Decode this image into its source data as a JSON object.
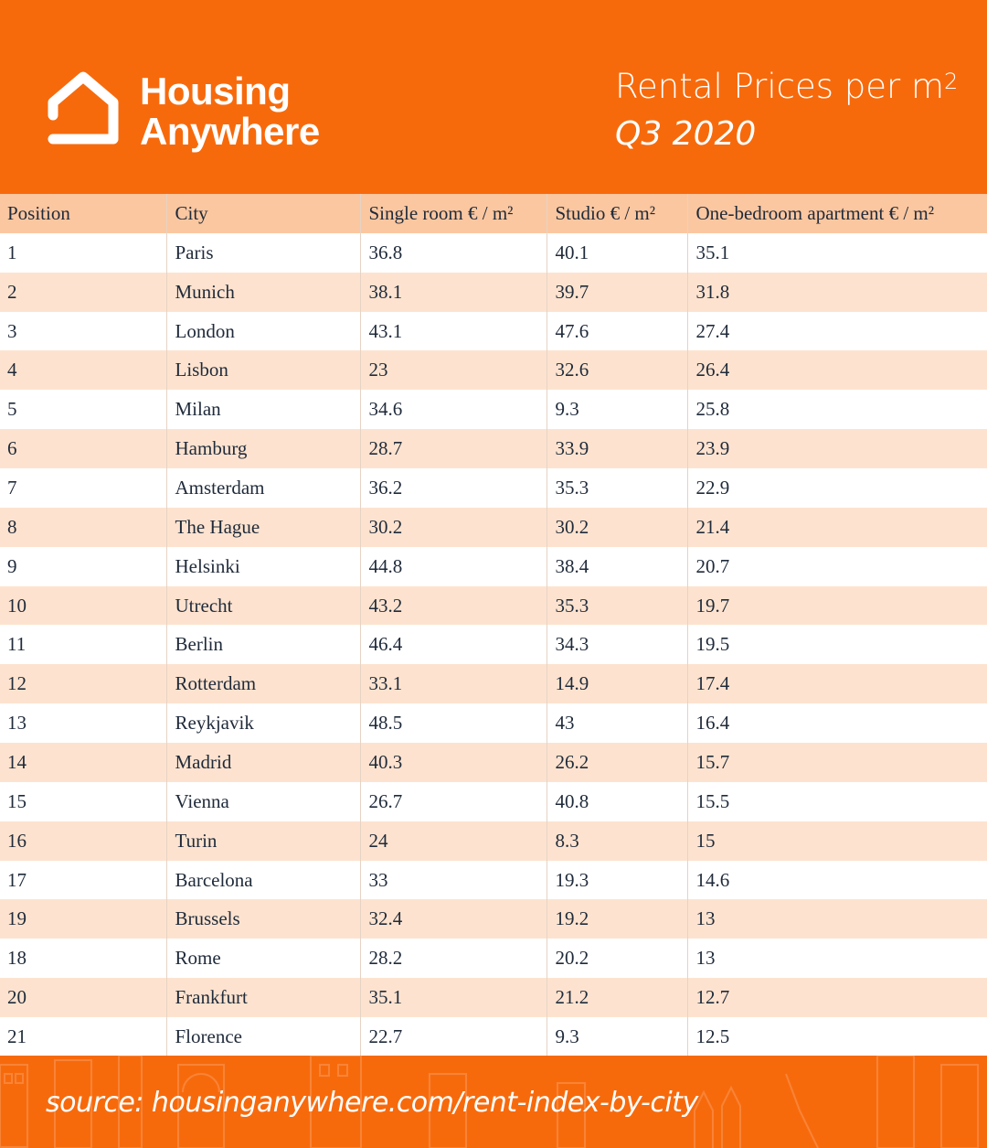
{
  "header": {
    "brand_line1": "Housing",
    "brand_line2": "Anywhere",
    "title": "Rental Prices per m",
    "title_sup": "2",
    "subtitle": "Q3 2020",
    "logo_icon": "house-icon"
  },
  "colors": {
    "brand": "#F76A0C",
    "header_row": "#FBC7A0",
    "alt_row": "#FDE3CF"
  },
  "table": {
    "columns": [
      "Position",
      "City",
      "Single room € / m²",
      "Studio € / m²",
      "One-bedroom apartment € / m²"
    ],
    "rows": [
      [
        "1",
        "Paris",
        "36.8",
        "40.1",
        "35.1"
      ],
      [
        "2",
        "Munich",
        "38.1",
        "39.7",
        "31.8"
      ],
      [
        "3",
        "London",
        "43.1",
        "47.6",
        "27.4"
      ],
      [
        "4",
        "Lisbon",
        "23",
        "32.6",
        "26.4"
      ],
      [
        "5",
        "Milan",
        "34.6",
        "9.3",
        "25.8"
      ],
      [
        "6",
        "Hamburg",
        "28.7",
        "33.9",
        "23.9"
      ],
      [
        "7",
        "Amsterdam",
        "36.2",
        "35.3",
        "22.9"
      ],
      [
        "8",
        "The Hague",
        "30.2",
        "30.2",
        "21.4"
      ],
      [
        "9",
        "Helsinki",
        "44.8",
        "38.4",
        "20.7"
      ],
      [
        "10",
        "Utrecht",
        "43.2",
        "35.3",
        "19.7"
      ],
      [
        "11",
        "Berlin",
        "46.4",
        "34.3",
        "19.5"
      ],
      [
        "12",
        "Rotterdam",
        "33.1",
        "14.9",
        "17.4"
      ],
      [
        "13",
        "Reykjavik",
        "48.5",
        "43",
        "16.4"
      ],
      [
        "14",
        "Madrid",
        "40.3",
        "26.2",
        "15.7"
      ],
      [
        "15",
        "Vienna",
        "26.7",
        "40.8",
        "15.5"
      ],
      [
        "16",
        "Turin",
        "24",
        "8.3",
        "15"
      ],
      [
        "17",
        "Barcelona",
        "33",
        "19.3",
        "14.6"
      ],
      [
        "19",
        "Brussels",
        "32.4",
        "19.2",
        "13"
      ],
      [
        "18",
        "Rome",
        "28.2",
        "20.2",
        "13"
      ],
      [
        "20",
        "Frankfurt",
        "35.1",
        "21.2",
        "12.7"
      ],
      [
        "21",
        "Florence",
        "22.7",
        "9.3",
        "12.5"
      ]
    ]
  },
  "footer": {
    "source": "source: housinganywhere.com/rent-index-by-city"
  }
}
